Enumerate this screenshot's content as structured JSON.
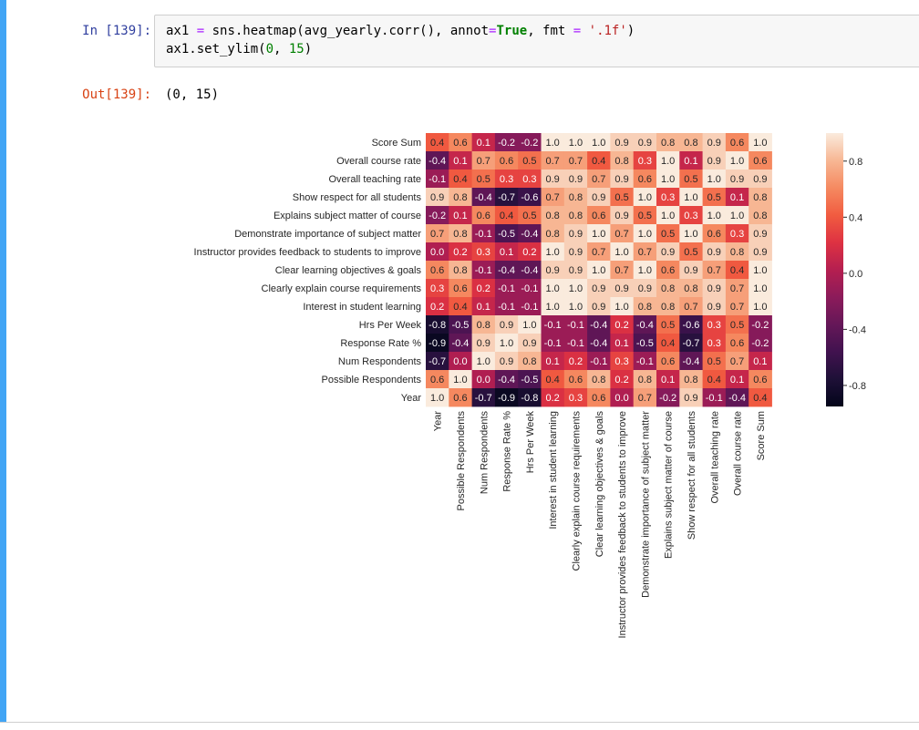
{
  "cell": {
    "in_prompt": "In [139]:",
    "out_prompt": "Out[139]:",
    "code": {
      "line1": [
        {
          "t": "ax1 ",
          "c": ""
        },
        {
          "t": "=",
          "c": "op"
        },
        {
          "t": " sns.heatmap(avg_yearly.corr(), annot",
          "c": ""
        },
        {
          "t": "=",
          "c": "op"
        },
        {
          "t": "True",
          "c": "kw"
        },
        {
          "t": ", fmt ",
          "c": ""
        },
        {
          "t": "=",
          "c": "op"
        },
        {
          "t": " ",
          "c": ""
        },
        {
          "t": "'.1f'",
          "c": "str"
        },
        {
          "t": ")",
          "c": ""
        }
      ],
      "line2": [
        {
          "t": "ax1.set_ylim(",
          "c": ""
        },
        {
          "t": "0",
          "c": "num"
        },
        {
          "t": ", ",
          "c": ""
        },
        {
          "t": "15",
          "c": "num"
        },
        {
          "t": ")",
          "c": ""
        }
      ]
    },
    "output_text": "(0, 15)"
  },
  "chart_data": {
    "type": "heatmap",
    "rows": [
      "Score Sum",
      "Overall course rate",
      "Overall teaching rate",
      "Show respect for all students",
      "Explains subject matter of course",
      "Demonstrate importance of subject matter",
      "Instructor provides feedback to students to improve",
      "Clear learning objectives & goals",
      "Clearly explain course requirements",
      "Interest in student learning",
      "Hrs Per Week",
      "Response Rate %",
      "Num Respondents",
      "Possible Respondents",
      "Year"
    ],
    "columns": [
      "Year",
      "Possible Respondents",
      "Num Respondents",
      "Response Rate %",
      "Hrs Per Week",
      "Interest in student learning",
      "Clearly explain course requirements",
      "Clear learning objectives & goals",
      "Instructor provides feedback to students to improve",
      "Demonstrate importance of subject matter",
      "Explains subject matter of course",
      "Show respect for all students",
      "Overall teaching rate",
      "Overall course rate",
      "Score Sum"
    ],
    "values": [
      [
        0.4,
        0.6,
        0.1,
        -0.2,
        -0.2,
        1.0,
        1.0,
        1.0,
        0.9,
        0.9,
        0.8,
        0.8,
        0.9,
        0.6,
        1.0
      ],
      [
        -0.4,
        0.1,
        0.7,
        0.6,
        0.5,
        0.7,
        0.7,
        0.4,
        0.8,
        0.3,
        1.0,
        0.1,
        0.9,
        1.0,
        0.6
      ],
      [
        -0.1,
        0.4,
        0.5,
        0.3,
        0.3,
        0.9,
        0.9,
        0.7,
        0.9,
        0.6,
        1.0,
        0.5,
        1.0,
        0.9,
        0.9
      ],
      [
        0.9,
        0.8,
        -0.4,
        -0.7,
        -0.6,
        0.7,
        0.8,
        0.9,
        0.5,
        1.0,
        0.3,
        1.0,
        0.5,
        0.1,
        0.8
      ],
      [
        -0.2,
        0.1,
        0.6,
        0.4,
        0.5,
        0.8,
        0.8,
        0.6,
        0.9,
        0.5,
        1.0,
        0.3,
        1.0,
        1.0,
        0.8
      ],
      [
        0.7,
        0.8,
        -0.1,
        -0.5,
        -0.4,
        0.8,
        0.9,
        1.0,
        0.7,
        1.0,
        0.5,
        1.0,
        0.6,
        0.3,
        0.9
      ],
      [
        0.0,
        0.2,
        0.3,
        0.1,
        0.2,
        1.0,
        0.9,
        0.7,
        1.0,
        0.7,
        0.9,
        0.5,
        0.9,
        0.8,
        0.9
      ],
      [
        0.6,
        0.8,
        -0.1,
        -0.4,
        -0.4,
        0.9,
        0.9,
        1.0,
        0.7,
        1.0,
        0.6,
        0.9,
        0.7,
        0.4,
        1.0
      ],
      [
        0.3,
        0.6,
        0.2,
        -0.1,
        -0.1,
        1.0,
        1.0,
        0.9,
        0.9,
        0.9,
        0.8,
        0.8,
        0.9,
        0.7,
        1.0
      ],
      [
        0.2,
        0.4,
        0.1,
        -0.1,
        -0.1,
        1.0,
        1.0,
        0.9,
        1.0,
        0.8,
        0.8,
        0.7,
        0.9,
        0.7,
        1.0
      ],
      [
        -0.8,
        -0.5,
        0.8,
        0.9,
        1.0,
        -0.1,
        -0.1,
        -0.4,
        0.2,
        -0.4,
        0.5,
        -0.6,
        0.3,
        0.5,
        -0.2
      ],
      [
        -0.9,
        -0.4,
        0.9,
        1.0,
        0.9,
        -0.1,
        -0.1,
        -0.4,
        0.1,
        -0.5,
        0.4,
        -0.7,
        0.3,
        0.6,
        -0.2
      ],
      [
        -0.7,
        0.0,
        1.0,
        0.9,
        0.8,
        0.1,
        0.2,
        -0.1,
        0.3,
        -0.1,
        0.6,
        -0.4,
        0.5,
        0.7,
        0.1
      ],
      [
        0.6,
        1.0,
        0.0,
        -0.4,
        -0.5,
        0.4,
        0.6,
        0.8,
        0.2,
        0.8,
        0.1,
        0.8,
        0.4,
        0.1,
        0.6
      ],
      [
        1.0,
        0.6,
        -0.7,
        -0.9,
        -0.8,
        0.2,
        0.3,
        0.6,
        0.0,
        0.7,
        -0.2,
        0.9,
        -0.1,
        -0.4,
        0.4
      ]
    ],
    "colorbar": {
      "ticks": [
        0.8,
        0.4,
        0.0,
        -0.4,
        -0.8
      ],
      "tick_labels": [
        "0.8",
        "0.4",
        "0.0",
        "-0.4",
        "-0.8"
      ],
      "range": [
        -0.95,
        1.0
      ]
    },
    "colormap": "rocket",
    "annot_format": ".1f",
    "ylim": [
      0,
      15
    ]
  }
}
